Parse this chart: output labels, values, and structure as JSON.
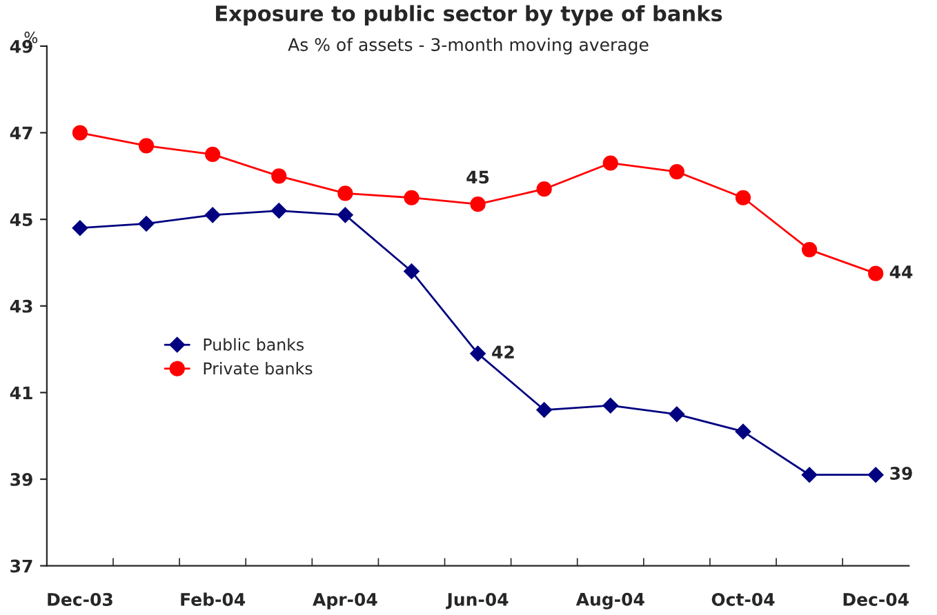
{
  "chart_data": {
    "type": "line",
    "title": "Exposure to public sector by type of banks",
    "subtitle": "As % of assets - 3-month moving average",
    "ylabel": "%",
    "categories": [
      "Dec-03",
      null,
      "Feb-04",
      null,
      "Apr-04",
      null,
      "Jun-04",
      null,
      "Aug-04",
      null,
      "Oct-04",
      null,
      "Dec-04"
    ],
    "series": [
      {
        "name": "Public banks",
        "color": "#000080",
        "marker": "diamond",
        "values": [
          44.8,
          44.9,
          45.1,
          45.2,
          45.1,
          43.8,
          41.9,
          40.6,
          40.7,
          40.5,
          40.1,
          39.1,
          39.1
        ],
        "value_labels": [
          null,
          null,
          null,
          null,
          null,
          null,
          "42",
          null,
          null,
          null,
          null,
          null,
          "39"
        ]
      },
      {
        "name": "Private banks",
        "color": "#ff0000",
        "marker": "circle",
        "values": [
          47.0,
          46.7,
          46.5,
          46.0,
          45.6,
          45.5,
          45.35,
          45.7,
          46.3,
          46.1,
          45.5,
          44.3,
          43.75
        ],
        "value_labels": [
          null,
          null,
          null,
          null,
          null,
          null,
          "45",
          null,
          null,
          null,
          null,
          null,
          "44"
        ]
      }
    ],
    "ylim": [
      37,
      49
    ],
    "yticks": [
      37,
      39,
      41,
      43,
      45,
      47,
      49
    ],
    "grid": false,
    "legend": "center left"
  }
}
